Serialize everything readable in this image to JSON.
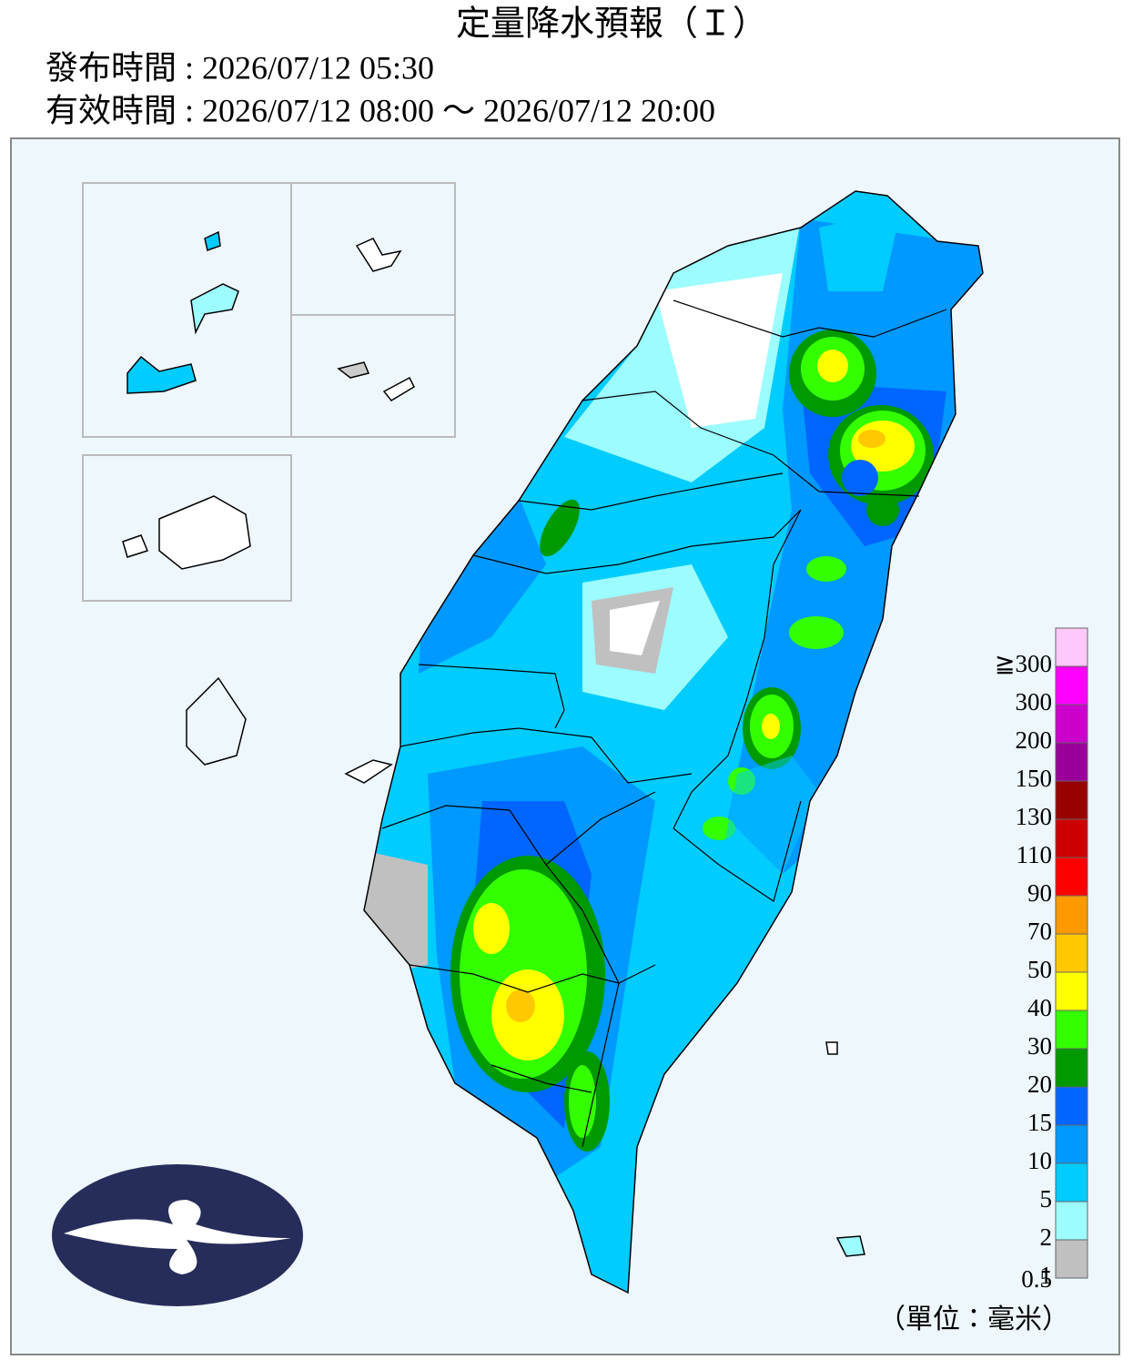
{
  "header": {
    "title": "定量降水預報（Ｉ）",
    "issued": "發布時間 : 2026/07/12 05:30",
    "valid": "有效時間 : 2026/07/12 08:00 ～ 2026/07/12 20:00"
  },
  "legend": {
    "unit": "（單位：毫米）",
    "items": [
      {
        "label": "≧300",
        "color": "#ffc8fa"
      },
      {
        "label": "300",
        "color": "#ff00ff"
      },
      {
        "label": "200",
        "color": "#cc00cc"
      },
      {
        "label": "150",
        "color": "#990099"
      },
      {
        "label": "130",
        "color": "#990000"
      },
      {
        "label": "110",
        "color": "#cc0000"
      },
      {
        "label": "90",
        "color": "#ff0000"
      },
      {
        "label": "70",
        "color": "#ff9900"
      },
      {
        "label": "50",
        "color": "#ffc800"
      },
      {
        "label": "40",
        "color": "#ffff00"
      },
      {
        "label": "30",
        "color": "#33ff00"
      },
      {
        "label": "20",
        "color": "#009900"
      },
      {
        "label": "15",
        "color": "#0066ff"
      },
      {
        "label": "10",
        "color": "#0099ff"
      },
      {
        "label": "5",
        "color": "#00ccff"
      },
      {
        "label": "2",
        "color": "#9cfcff"
      },
      {
        "label": "1",
        "color": "#c0c0c0"
      }
    ],
    "bottom_label": "0.5"
  }
}
